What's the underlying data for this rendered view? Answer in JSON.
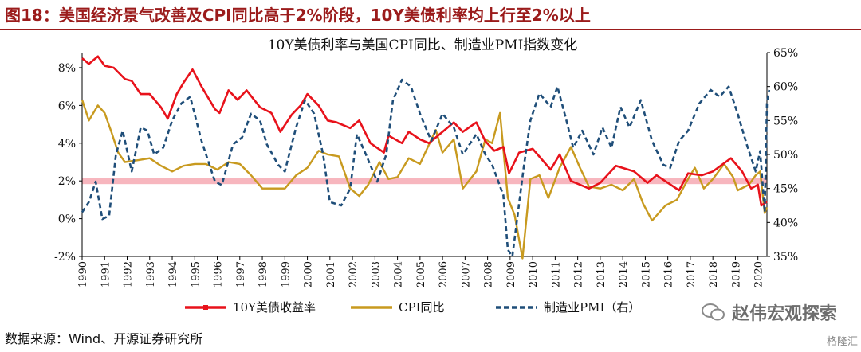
{
  "figure": {
    "number_title": "图18：美国经济景气改善及CPI同比高于2%阶段，10Y美债利率均上行至2%以上",
    "source": "数据来源：Wind、开源证券研究所",
    "watermark": "赵伟宏观探索",
    "stamp": "格隆汇"
  },
  "chart_data": {
    "type": "line",
    "title": "10Y美债利率与美国CPI同比、制造业PMI指数变化",
    "x_labels": [
      "1990",
      "1991",
      "1992",
      "1993",
      "1994",
      "1995",
      "1996",
      "1997",
      "1998",
      "1999",
      "2000",
      "2001",
      "2002",
      "2003",
      "2004",
      "2005",
      "2006",
      "2007",
      "2008",
      "2009",
      "2010",
      "2011",
      "2012",
      "2013",
      "2014",
      "2015",
      "2016",
      "2017",
      "2018",
      "2019",
      "2020"
    ],
    "xlim": [
      1990,
      2020.4
    ],
    "y_left": {
      "ticks": [
        "-2%",
        "0%",
        "2%",
        "4%",
        "6%",
        "8%"
      ],
      "lim": [
        -2,
        8.8
      ]
    },
    "y_right": {
      "ticks": [
        "35%",
        "40%",
        "45%",
        "50%",
        "55%",
        "60%",
        "65%"
      ],
      "lim": [
        35,
        65
      ]
    },
    "threshold_band": {
      "y": 2,
      "axis": "left",
      "color": "#f7b6be"
    },
    "grid": false,
    "legend_position": "bottom",
    "colors": {
      "yield": "#e8121b",
      "cpi": "#c89a1f",
      "pmi": "#1f4e79",
      "axis": "#000000"
    },
    "series": [
      {
        "name": "10Y美债收益率",
        "axis": "left",
        "style": "solid-marker",
        "points": [
          [
            1990,
            8.5
          ],
          [
            1990.3,
            8.2
          ],
          [
            1990.7,
            8.6
          ],
          [
            1991,
            8.1
          ],
          [
            1991.4,
            8.0
          ],
          [
            1991.9,
            7.4
          ],
          [
            1992.2,
            7.3
          ],
          [
            1992.6,
            6.6
          ],
          [
            1993,
            6.6
          ],
          [
            1993.5,
            5.9
          ],
          [
            1993.8,
            5.3
          ],
          [
            1994.2,
            6.6
          ],
          [
            1994.5,
            7.2
          ],
          [
            1994.9,
            7.9
          ],
          [
            1995.3,
            7.0
          ],
          [
            1995.9,
            5.8
          ],
          [
            1996.1,
            5.6
          ],
          [
            1996.5,
            6.8
          ],
          [
            1996.9,
            6.3
          ],
          [
            1997.3,
            6.8
          ],
          [
            1997.9,
            5.9
          ],
          [
            1998.4,
            5.6
          ],
          [
            1998.8,
            4.6
          ],
          [
            1999.3,
            5.5
          ],
          [
            1999.7,
            6.0
          ],
          [
            2000,
            6.6
          ],
          [
            2000.5,
            6.0
          ],
          [
            2000.9,
            5.2
          ],
          [
            2001.3,
            5.1
          ],
          [
            2001.9,
            4.8
          ],
          [
            2002.3,
            5.2
          ],
          [
            2002.8,
            4.0
          ],
          [
            2003.4,
            3.5
          ],
          [
            2003.6,
            4.4
          ],
          [
            2004.2,
            4.0
          ],
          [
            2004.5,
            4.6
          ],
          [
            2005,
            4.2
          ],
          [
            2005.4,
            4.0
          ],
          [
            2005.9,
            4.5
          ],
          [
            2006.5,
            5.1
          ],
          [
            2006.9,
            4.6
          ],
          [
            2007.5,
            5.1
          ],
          [
            2007.9,
            4.1
          ],
          [
            2008.3,
            3.6
          ],
          [
            2008.7,
            3.8
          ],
          [
            2008.95,
            2.4
          ],
          [
            2009.4,
            3.5
          ],
          [
            2010,
            3.7
          ],
          [
            2010.8,
            2.6
          ],
          [
            2011.2,
            3.4
          ],
          [
            2011.7,
            2.0
          ],
          [
            2012.5,
            1.6
          ],
          [
            2013,
            1.9
          ],
          [
            2013.7,
            2.8
          ],
          [
            2014.5,
            2.5
          ],
          [
            2015.1,
            1.9
          ],
          [
            2015.5,
            2.3
          ],
          [
            2016.5,
            1.5
          ],
          [
            2016.9,
            2.4
          ],
          [
            2017.5,
            2.3
          ],
          [
            2018,
            2.5
          ],
          [
            2018.8,
            3.2
          ],
          [
            2019.3,
            2.5
          ],
          [
            2019.7,
            1.6
          ],
          [
            2020.0,
            1.8
          ],
          [
            2020.15,
            0.7
          ],
          [
            2020.4,
            0.9
          ]
        ]
      },
      {
        "name": "CPI同比",
        "axis": "left",
        "style": "solid",
        "points": [
          [
            1990,
            6.3
          ],
          [
            1990.3,
            5.2
          ],
          [
            1990.7,
            6.0
          ],
          [
            1991,
            5.6
          ],
          [
            1991.3,
            4.6
          ],
          [
            1991.6,
            3.5
          ],
          [
            1991.9,
            3.0
          ],
          [
            1992.5,
            3.1
          ],
          [
            1993,
            3.2
          ],
          [
            1993.5,
            2.8
          ],
          [
            1994,
            2.5
          ],
          [
            1994.5,
            2.8
          ],
          [
            1995,
            2.9
          ],
          [
            1995.5,
            2.9
          ],
          [
            1996,
            2.6
          ],
          [
            1996.5,
            3.0
          ],
          [
            1997,
            2.9
          ],
          [
            1997.5,
            2.3
          ],
          [
            1998,
            1.6
          ],
          [
            1998.5,
            1.6
          ],
          [
            1999,
            1.6
          ],
          [
            1999.5,
            2.3
          ],
          [
            2000,
            2.7
          ],
          [
            2000.5,
            3.6
          ],
          [
            2000.9,
            3.4
          ],
          [
            2001.4,
            3.3
          ],
          [
            2001.9,
            1.6
          ],
          [
            2002.3,
            1.2
          ],
          [
            2002.7,
            1.8
          ],
          [
            2003.2,
            3.0
          ],
          [
            2003.6,
            2.1
          ],
          [
            2004,
            2.2
          ],
          [
            2004.5,
            3.2
          ],
          [
            2005,
            2.9
          ],
          [
            2005.7,
            4.7
          ],
          [
            2006,
            3.5
          ],
          [
            2006.5,
            4.2
          ],
          [
            2006.9,
            1.6
          ],
          [
            2007.5,
            2.5
          ],
          [
            2007.9,
            4.2
          ],
          [
            2008.2,
            4.0
          ],
          [
            2008.55,
            5.6
          ],
          [
            2008.9,
            1.1
          ],
          [
            2009.2,
            0.2
          ],
          [
            2009.55,
            -2.1
          ],
          [
            2009.9,
            2.1
          ],
          [
            2010.3,
            2.3
          ],
          [
            2010.7,
            1.1
          ],
          [
            2011.2,
            2.7
          ],
          [
            2011.7,
            3.8
          ],
          [
            2012.1,
            2.7
          ],
          [
            2012.5,
            1.7
          ],
          [
            2013,
            1.6
          ],
          [
            2013.5,
            1.8
          ],
          [
            2014,
            1.5
          ],
          [
            2014.5,
            2.1
          ],
          [
            2014.9,
            0.8
          ],
          [
            2015.3,
            -0.1
          ],
          [
            2015.9,
            0.7
          ],
          [
            2016.4,
            1.0
          ],
          [
            2016.9,
            2.1
          ],
          [
            2017.2,
            2.7
          ],
          [
            2017.6,
            1.6
          ],
          [
            2018,
            2.1
          ],
          [
            2018.5,
            2.9
          ],
          [
            2018.9,
            2.2
          ],
          [
            2019.1,
            1.5
          ],
          [
            2019.6,
            1.8
          ],
          [
            2019.9,
            2.3
          ],
          [
            2020.1,
            2.5
          ],
          [
            2020.3,
            0.3
          ],
          [
            2020.4,
            0.6
          ]
        ]
      },
      {
        "name": "制造业PMI（右）",
        "axis": "right",
        "style": "dashed",
        "points": [
          [
            1990,
            41.5
          ],
          [
            1990.3,
            43.0
          ],
          [
            1990.6,
            46.0
          ],
          [
            1990.9,
            40.5
          ],
          [
            1991.2,
            41.0
          ],
          [
            1991.5,
            50.0
          ],
          [
            1991.8,
            53.5
          ],
          [
            1992.2,
            47.5
          ],
          [
            1992.6,
            54.0
          ],
          [
            1992.9,
            53.5
          ],
          [
            1993.2,
            50.0
          ],
          [
            1993.6,
            51.0
          ],
          [
            1994,
            55.0
          ],
          [
            1994.4,
            57.5
          ],
          [
            1994.8,
            58.5
          ],
          [
            1995.3,
            52.0
          ],
          [
            1995.9,
            46.0
          ],
          [
            1996.2,
            45.5
          ],
          [
            1996.7,
            51.5
          ],
          [
            1997.1,
            52.5
          ],
          [
            1997.5,
            56.0
          ],
          [
            1997.9,
            55.0
          ],
          [
            1998.2,
            51.5
          ],
          [
            1998.7,
            48.5
          ],
          [
            1999,
            47.5
          ],
          [
            1999.5,
            54.0
          ],
          [
            1999.9,
            58.0
          ],
          [
            2000.3,
            56.0
          ],
          [
            2000.7,
            50.0
          ],
          [
            2001,
            43.0
          ],
          [
            2001.5,
            42.5
          ],
          [
            2001.9,
            45.0
          ],
          [
            2002.2,
            53.0
          ],
          [
            2002.6,
            50.0
          ],
          [
            2003.1,
            46.0
          ],
          [
            2003.5,
            50.0
          ],
          [
            2003.8,
            58.0
          ],
          [
            2004.2,
            61.0
          ],
          [
            2004.6,
            60.0
          ],
          [
            2005,
            56.0
          ],
          [
            2005.5,
            52.0
          ],
          [
            2006,
            56.0
          ],
          [
            2006.5,
            54.0
          ],
          [
            2006.9,
            50.0
          ],
          [
            2007.5,
            53.0
          ],
          [
            2007.9,
            50.0
          ],
          [
            2008.2,
            48.5
          ],
          [
            2008.7,
            44.0
          ],
          [
            2008.9,
            36.0
          ],
          [
            2009.1,
            35.0
          ],
          [
            2009.6,
            48.0
          ],
          [
            2009.9,
            55.0
          ],
          [
            2010.3,
            59.0
          ],
          [
            2010.8,
            57.0
          ],
          [
            2011.1,
            60.0
          ],
          [
            2011.5,
            55.0
          ],
          [
            2011.8,
            51.0
          ],
          [
            2012.2,
            53.5
          ],
          [
            2012.7,
            50.0
          ],
          [
            2013.1,
            54.0
          ],
          [
            2013.5,
            51.0
          ],
          [
            2013.9,
            57.0
          ],
          [
            2014.3,
            54.0
          ],
          [
            2014.8,
            58.0
          ],
          [
            2015.3,
            52.0
          ],
          [
            2015.8,
            48.5
          ],
          [
            2016.1,
            48.0
          ],
          [
            2016.5,
            52.0
          ],
          [
            2016.9,
            53.5
          ],
          [
            2017.4,
            57.5
          ],
          [
            2017.9,
            59.5
          ],
          [
            2018.3,
            58.5
          ],
          [
            2018.7,
            60.0
          ],
          [
            2019.1,
            56.0
          ],
          [
            2019.5,
            51.5
          ],
          [
            2019.9,
            47.5
          ],
          [
            2020.1,
            50.5
          ],
          [
            2020.3,
            41.5
          ],
          [
            2020.4,
            57.5
          ],
          [
            2020.5,
            59.5
          ]
        ]
      }
    ]
  }
}
